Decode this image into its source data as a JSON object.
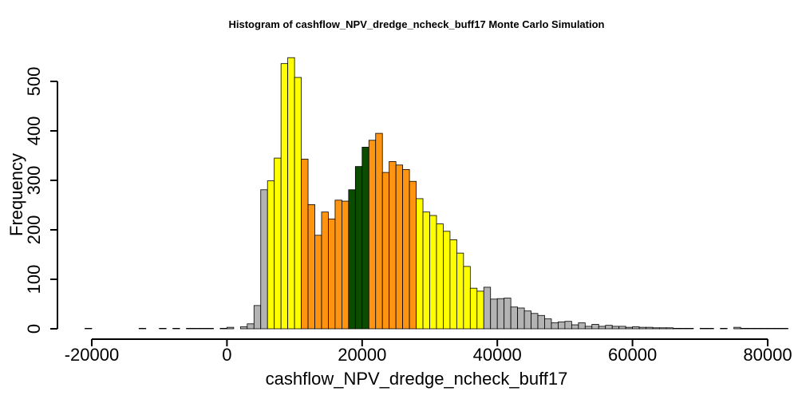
{
  "chart_data": {
    "type": "bar",
    "title": "Histogram of  cashflow_NPV_dredge_ncheck_buff17  Monte Carlo Simulation",
    "xlabel": "cashflow_NPV_dredge_ncheck_buff17",
    "ylabel": "Frequency",
    "xlim": [
      -20000,
      80000
    ],
    "ylim": [
      0,
      500
    ],
    "x_ticks": [
      -20000,
      0,
      20000,
      40000,
      60000,
      80000
    ],
    "x_tick_labels": [
      "-20000",
      "0",
      "20000",
      "40000",
      "60000",
      "80000"
    ],
    "y_ticks": [
      0,
      100,
      200,
      300,
      400,
      500
    ],
    "y_tick_labels": [
      "0",
      "100",
      "200",
      "300",
      "400",
      "500"
    ],
    "grid": false,
    "bin_start": -21000,
    "bin_width": 1000,
    "values": [
      1,
      0,
      0,
      0,
      0,
      0,
      0,
      0,
      1,
      0,
      0,
      1,
      0,
      1,
      0,
      1,
      1,
      1,
      1,
      0,
      1,
      3,
      0,
      4,
      10,
      47,
      281,
      299,
      345,
      536,
      548,
      508,
      343,
      251,
      189,
      236,
      222,
      260,
      258,
      281,
      328,
      367,
      381,
      395,
      316,
      338,
      331,
      322,
      298,
      263,
      236,
      229,
      212,
      197,
      180,
      153,
      126,
      82,
      76,
      84,
      60,
      61,
      62,
      44,
      42,
      36,
      31,
      27,
      20,
      12,
      14,
      15,
      8,
      12,
      5,
      9,
      5,
      7,
      5,
      5,
      3,
      4,
      3,
      3,
      2,
      2,
      2,
      1,
      1,
      1,
      0,
      1,
      1,
      0,
      1,
      0,
      3,
      1,
      1,
      1,
      1,
      1,
      1,
      1
    ],
    "bin_colors": [
      "grey",
      "grey",
      "grey",
      "grey",
      "grey",
      "grey",
      "grey",
      "grey",
      "grey",
      "grey",
      "grey",
      "grey",
      "grey",
      "grey",
      "grey",
      "grey",
      "grey",
      "grey",
      "grey",
      "grey",
      "grey",
      "grey",
      "grey",
      "grey",
      "grey",
      "grey",
      "grey",
      "yellow",
      "yellow",
      "yellow",
      "yellow",
      "yellow",
      "orange",
      "orange",
      "orange",
      "orange",
      "orange",
      "orange",
      "orange",
      "green",
      "green",
      "green",
      "orange",
      "orange",
      "orange",
      "orange",
      "orange",
      "orange",
      "orange",
      "yellow",
      "yellow",
      "yellow",
      "yellow",
      "yellow",
      "yellow",
      "yellow",
      "yellow",
      "yellow",
      "yellow",
      "grey",
      "grey",
      "grey",
      "grey",
      "grey",
      "grey",
      "grey",
      "grey",
      "grey",
      "grey",
      "grey",
      "grey",
      "grey",
      "grey",
      "grey",
      "grey",
      "grey",
      "grey",
      "grey",
      "grey",
      "grey",
      "grey",
      "grey",
      "grey",
      "grey",
      "grey",
      "grey",
      "grey",
      "grey",
      "grey",
      "grey",
      "grey",
      "grey",
      "grey",
      "grey",
      "grey",
      "grey",
      "grey",
      "grey",
      "grey",
      "grey",
      "grey",
      "grey",
      "grey",
      "grey"
    ],
    "colors": {
      "grey": "#b3b3b3",
      "yellow": "#ffff00",
      "orange": "#ff9410",
      "green": "#0a4d00",
      "outline": "#000000"
    }
  }
}
